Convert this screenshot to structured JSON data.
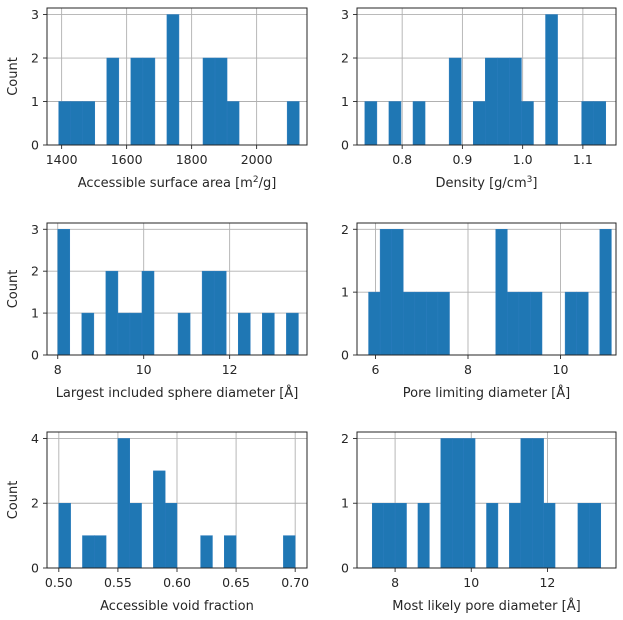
{
  "colors": {
    "bar": "#1f77b4",
    "grid": "#b0b0b0",
    "axis": "#262626"
  },
  "chart_data": [
    {
      "type": "bar",
      "kind": "histogram",
      "xlabel": "Accessible surface area [m²/g]",
      "ylabel": "Count",
      "xlim": [
        1355,
        2155
      ],
      "ylim": [
        0,
        3.15
      ],
      "xticks": [
        1400,
        1600,
        1800,
        2000
      ],
      "xtick_labels": [
        "1400",
        "1600",
        "1800",
        "2000"
      ],
      "yticks": [
        0,
        1,
        2,
        3
      ],
      "ytick_labels": [
        "0",
        "1",
        "2",
        "3"
      ],
      "grid": true,
      "bins": [
        {
          "x0": 1391,
          "x1": 1428,
          "count": 1
        },
        {
          "x0": 1428,
          "x1": 1465,
          "count": 1
        },
        {
          "x0": 1465,
          "x1": 1502,
          "count": 1
        },
        {
          "x0": 1539,
          "x1": 1576,
          "count": 2
        },
        {
          "x0": 1613,
          "x1": 1650,
          "count": 2
        },
        {
          "x0": 1650,
          "x1": 1687,
          "count": 2
        },
        {
          "x0": 1724,
          "x1": 1761,
          "count": 3
        },
        {
          "x0": 1835,
          "x1": 1872,
          "count": 2
        },
        {
          "x0": 1872,
          "x1": 1909,
          "count": 2
        },
        {
          "x0": 1909,
          "x1": 1946,
          "count": 1
        },
        {
          "x0": 2094,
          "x1": 2131,
          "count": 1
        }
      ]
    },
    {
      "type": "bar",
      "kind": "histogram",
      "xlabel": "Density [g/cm³]",
      "ylabel": "",
      "xlim": [
        0.725,
        1.155
      ],
      "ylim": [
        0,
        3.15
      ],
      "xticks": [
        0.8,
        0.9,
        1.0,
        1.1
      ],
      "xtick_labels": [
        "0.8",
        "0.9",
        "1.0",
        "1.1"
      ],
      "yticks": [
        0,
        1,
        2,
        3
      ],
      "ytick_labels": [
        "0",
        "1",
        "2",
        "3"
      ],
      "grid": true,
      "bins": [
        {
          "x0": 0.738,
          "x1": 0.758,
          "count": 1
        },
        {
          "x0": 0.778,
          "x1": 0.798,
          "count": 1
        },
        {
          "x0": 0.818,
          "x1": 0.838,
          "count": 1
        },
        {
          "x0": 0.878,
          "x1": 0.898,
          "count": 2
        },
        {
          "x0": 0.918,
          "x1": 0.938,
          "count": 1
        },
        {
          "x0": 0.938,
          "x1": 0.958,
          "count": 2
        },
        {
          "x0": 0.958,
          "x1": 0.978,
          "count": 2
        },
        {
          "x0": 0.978,
          "x1": 0.998,
          "count": 2
        },
        {
          "x0": 0.998,
          "x1": 1.018,
          "count": 1
        },
        {
          "x0": 1.038,
          "x1": 1.058,
          "count": 3
        },
        {
          "x0": 1.098,
          "x1": 1.118,
          "count": 1
        },
        {
          "x0": 1.118,
          "x1": 1.138,
          "count": 1
        }
      ]
    },
    {
      "type": "bar",
      "kind": "histogram",
      "xlabel": "Largest included sphere diameter [Å]",
      "ylabel": "Count",
      "xlim": [
        7.75,
        13.8
      ],
      "ylim": [
        0,
        3.15
      ],
      "xticks": [
        8,
        10,
        12
      ],
      "xtick_labels": [
        "8",
        "10",
        "12"
      ],
      "yticks": [
        0,
        1,
        2,
        3
      ],
      "ytick_labels": [
        "0",
        "1",
        "2",
        "3"
      ],
      "grid": true,
      "bins": [
        {
          "x0": 8.0,
          "x1": 8.28,
          "count": 3
        },
        {
          "x0": 8.56,
          "x1": 8.84,
          "count": 1
        },
        {
          "x0": 9.12,
          "x1": 9.4,
          "count": 2
        },
        {
          "x0": 9.4,
          "x1": 9.68,
          "count": 1
        },
        {
          "x0": 9.68,
          "x1": 9.96,
          "count": 1
        },
        {
          "x0": 9.96,
          "x1": 10.24,
          "count": 2
        },
        {
          "x0": 10.8,
          "x1": 11.08,
          "count": 1
        },
        {
          "x0": 11.36,
          "x1": 11.64,
          "count": 2
        },
        {
          "x0": 11.64,
          "x1": 11.92,
          "count": 2
        },
        {
          "x0": 12.2,
          "x1": 12.48,
          "count": 1
        },
        {
          "x0": 12.76,
          "x1": 13.04,
          "count": 1
        },
        {
          "x0": 13.32,
          "x1": 13.6,
          "count": 1
        }
      ]
    },
    {
      "type": "bar",
      "kind": "histogram",
      "xlabel": "Pore limiting diameter [Å]",
      "ylabel": "",
      "xlim": [
        5.6,
        11.2
      ],
      "ylim": [
        0,
        2.1
      ],
      "xticks": [
        6,
        8,
        10
      ],
      "xtick_labels": [
        "6",
        "8",
        "10"
      ],
      "yticks": [
        0,
        1,
        2
      ],
      "ytick_labels": [
        "0",
        "1",
        "2"
      ],
      "grid": true,
      "bins": [
        {
          "x0": 5.85,
          "x1": 6.1,
          "count": 1
        },
        {
          "x0": 6.1,
          "x1": 6.35,
          "count": 2
        },
        {
          "x0": 6.35,
          "x1": 6.6,
          "count": 2
        },
        {
          "x0": 6.6,
          "x1": 6.85,
          "count": 1
        },
        {
          "x0": 6.85,
          "x1": 7.1,
          "count": 1
        },
        {
          "x0": 7.1,
          "x1": 7.35,
          "count": 1
        },
        {
          "x0": 7.35,
          "x1": 7.6,
          "count": 1
        },
        {
          "x0": 8.6,
          "x1": 8.85,
          "count": 2
        },
        {
          "x0": 8.85,
          "x1": 9.1,
          "count": 1
        },
        {
          "x0": 9.1,
          "x1": 9.35,
          "count": 1
        },
        {
          "x0": 9.35,
          "x1": 9.6,
          "count": 1
        },
        {
          "x0": 10.1,
          "x1": 10.35,
          "count": 1
        },
        {
          "x0": 10.35,
          "x1": 10.6,
          "count": 1
        },
        {
          "x0": 10.85,
          "x1": 11.1,
          "count": 2
        }
      ]
    },
    {
      "type": "bar",
      "kind": "histogram",
      "xlabel": "Accessible void fraction",
      "ylabel": "Count",
      "xlim": [
        0.49,
        0.71
      ],
      "ylim": [
        0,
        4.2
      ],
      "xticks": [
        0.5,
        0.55,
        0.6,
        0.65,
        0.7
      ],
      "xtick_labels": [
        "0.50",
        "0.55",
        "0.60",
        "0.65",
        "0.70"
      ],
      "yticks": [
        0,
        2,
        4
      ],
      "ytick_labels": [
        "0",
        "2",
        "4"
      ],
      "grid": true,
      "bins": [
        {
          "x0": 0.5,
          "x1": 0.51,
          "count": 2
        },
        {
          "x0": 0.52,
          "x1": 0.53,
          "count": 1
        },
        {
          "x0": 0.53,
          "x1": 0.54,
          "count": 1
        },
        {
          "x0": 0.55,
          "x1": 0.56,
          "count": 4
        },
        {
          "x0": 0.56,
          "x1": 0.57,
          "count": 2
        },
        {
          "x0": 0.58,
          "x1": 0.59,
          "count": 3
        },
        {
          "x0": 0.59,
          "x1": 0.6,
          "count": 2
        },
        {
          "x0": 0.62,
          "x1": 0.63,
          "count": 1
        },
        {
          "x0": 0.64,
          "x1": 0.65,
          "count": 1
        },
        {
          "x0": 0.69,
          "x1": 0.7,
          "count": 1
        }
      ]
    },
    {
      "type": "bar",
      "kind": "histogram",
      "xlabel": "Most likely pore diameter [Å]",
      "ylabel": "",
      "xlim": [
        7.0,
        13.8
      ],
      "ylim": [
        0,
        2.1
      ],
      "xticks": [
        8,
        10,
        12
      ],
      "xtick_labels": [
        "8",
        "10",
        "12"
      ],
      "yticks": [
        0,
        1,
        2
      ],
      "ytick_labels": [
        "0",
        "1",
        "2"
      ],
      "grid": true,
      "bins": [
        {
          "x0": 7.4,
          "x1": 7.7,
          "count": 1
        },
        {
          "x0": 7.7,
          "x1": 8.0,
          "count": 1
        },
        {
          "x0": 8.0,
          "x1": 8.3,
          "count": 1
        },
        {
          "x0": 8.6,
          "x1": 8.9,
          "count": 1
        },
        {
          "x0": 9.2,
          "x1": 9.5,
          "count": 2
        },
        {
          "x0": 9.5,
          "x1": 9.8,
          "count": 2
        },
        {
          "x0": 9.8,
          "x1": 10.1,
          "count": 2
        },
        {
          "x0": 10.4,
          "x1": 10.7,
          "count": 1
        },
        {
          "x0": 11.0,
          "x1": 11.3,
          "count": 1
        },
        {
          "x0": 11.3,
          "x1": 11.6,
          "count": 2
        },
        {
          "x0": 11.6,
          "x1": 11.9,
          "count": 2
        },
        {
          "x0": 11.9,
          "x1": 12.2,
          "count": 1
        },
        {
          "x0": 12.8,
          "x1": 13.1,
          "count": 1
        },
        {
          "x0": 13.1,
          "x1": 13.4,
          "count": 1
        }
      ]
    }
  ]
}
